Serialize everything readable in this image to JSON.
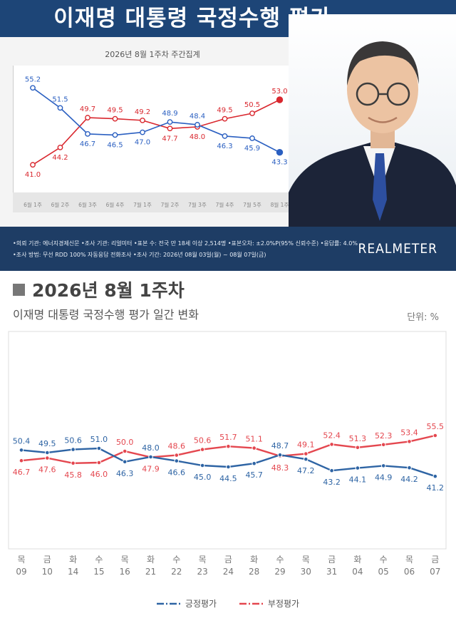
{
  "header": {
    "title": "이재명 대통령 국정수행 평가"
  },
  "weekly_chart_title": "2026년 8월 1주차 주간집계",
  "info": {
    "line1": "•의뢰 기관: 에너지경제신문 •조사 기관: 리얼미터 •표본 수: 전국 만 18세 이상 2,514명 •표본오차: ±2.0%P(95% 신뢰수준) •응답률: 4.0%",
    "line2": "•조사 방법: 무선 RDD 100% 자동응답 전화조사 •조사 기간: 2026년 08월 03일(월) ~ 08월 07일(금)",
    "brand": "REALMETER"
  },
  "daily_section": {
    "title": "2026년 8월 1주차",
    "subtitle": "이재명 대통령 국정수행 평가 일간 변화",
    "unit": "단위: %"
  },
  "legend": {
    "positive": "긍정평가",
    "negative": "부정평가"
  },
  "colors": {
    "positive": "#2e64a4",
    "negative": "#e4474f",
    "weekly_positive": "#2a5fc1",
    "weekly_negative": "#d9272e"
  },
  "chart_data": [
    {
      "type": "line",
      "title": "2026년 8월 1주차 주간집계",
      "categories": [
        "6월 1주",
        "6월 2주",
        "6월 3주",
        "6월 4주",
        "7월 1주",
        "7월 2주",
        "7월 3주",
        "7월 4주",
        "7월 5주",
        "8월 1주"
      ],
      "series": [
        {
          "name": "긍정평가",
          "values": [
            55.2,
            51.5,
            46.7,
            46.5,
            47.0,
            48.9,
            48.4,
            46.3,
            45.9,
            43.3
          ]
        },
        {
          "name": "부정평가",
          "values": [
            41.0,
            44.2,
            49.7,
            49.5,
            49.2,
            47.7,
            48.0,
            49.5,
            50.5,
            53.0
          ]
        }
      ]
    },
    {
      "type": "line",
      "title": "이재명 대통령 국정수행 평가 일간 변화",
      "categories": [
        "09",
        "10",
        "14",
        "15",
        "16",
        "21",
        "22",
        "23",
        "24",
        "28",
        "29",
        "30",
        "31",
        "04",
        "05",
        "06",
        "07"
      ],
      "weekdays": [
        "목",
        "금",
        "화",
        "수",
        "목",
        "화",
        "수",
        "목",
        "금",
        "화",
        "수",
        "목",
        "금",
        "화",
        "수",
        "목",
        "금"
      ],
      "unit": "단위: %",
      "series": [
        {
          "name": "긍정평가",
          "values": [
            50.4,
            49.5,
            50.6,
            51.0,
            46.3,
            48.0,
            46.6,
            45.0,
            44.5,
            45.7,
            48.7,
            47.2,
            43.2,
            44.1,
            44.9,
            44.2,
            41.2
          ]
        },
        {
          "name": "부정평가",
          "values": [
            46.7,
            47.6,
            45.8,
            46.0,
            50.0,
            47.9,
            48.6,
            50.6,
            51.7,
            51.1,
            48.3,
            49.1,
            52.4,
            51.3,
            52.3,
            53.4,
            55.5
          ]
        }
      ]
    }
  ]
}
